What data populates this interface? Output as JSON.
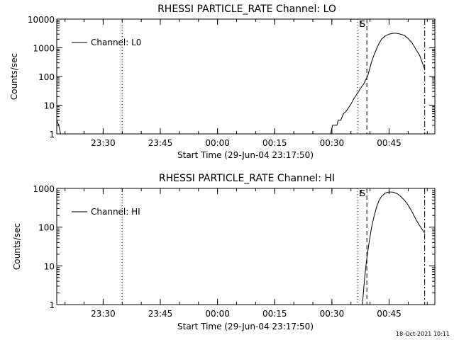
{
  "footer_timestamp": "18-Oct-2021 10:11",
  "colors": {
    "background": "#ffffff",
    "foreground": "#000000"
  },
  "chart_data": [
    {
      "type": "line",
      "title": "RHESSI PARTICLE_RATE Channel: LO",
      "xlabel": "Start Time (29-Jun-04 23:17:50)",
      "ylabel": "Counts/sec",
      "y_scale": "log",
      "ylim": [
        1,
        10000
      ],
      "xlim": [
        "23:17:50",
        "00:57:00"
      ],
      "x_ticks": [
        "23:30",
        "23:45",
        "00:00",
        "00:15",
        "00:30",
        "00:45"
      ],
      "y_ticks": [
        "1",
        "10",
        "100",
        "1000",
        "10000"
      ],
      "grid": false,
      "legend": {
        "position": "top-left",
        "entries": [
          "Channel: L0"
        ]
      },
      "markers": [
        {
          "time": "23:35:00",
          "style": "dotted",
          "label": ""
        },
        {
          "time": "00:36:45",
          "style": "dotted",
          "label": "E"
        },
        {
          "time": "00:39:10",
          "style": "dashed",
          "label": "S"
        },
        {
          "time": "00:54:20",
          "style": "dash-dot",
          "label": ""
        }
      ],
      "series": [
        {
          "name": "Channel: L0",
          "segments": [
            {
              "x": [
                "23:17:50",
                "23:18:20",
                "23:18:50"
              ],
              "y": [
                3,
                2,
                1
              ]
            },
            {
              "x": [
                "00:29:40",
                "00:30:10",
                "00:30:40",
                "00:31:20",
                "00:31:40",
                "00:32:20",
                "00:33:00",
                "00:33:40",
                "00:34:20",
                "00:35:00",
                "00:35:40",
                "00:36:20",
                "00:37:00",
                "00:37:40",
                "00:38:20",
                "00:38:50",
                "00:39:20",
                "00:39:50",
                "00:40:20",
                "00:41:00",
                "00:41:40",
                "00:42:20",
                "00:43:00",
                "00:44:00",
                "00:45:00",
                "00:46:00",
                "00:47:00",
                "00:48:00",
                "00:49:00",
                "00:50:00",
                "00:51:00",
                "00:52:00",
                "00:53:00",
                "00:54:20"
              ],
              "y": [
                1,
                2,
                2,
                2,
                3,
                3,
                5,
                6,
                8,
                11,
                16,
                22,
                30,
                42,
                55,
                75,
                100,
                170,
                300,
                550,
                900,
                1400,
                2000,
                2600,
                3000,
                3200,
                3200,
                3000,
                2700,
                2100,
                1500,
                900,
                550,
                180
              ]
            }
          ]
        }
      ]
    },
    {
      "type": "line",
      "title": "RHESSI PARTICLE_RATE Channel: HI",
      "xlabel": "Start Time (29-Jun-04 23:17:50)",
      "ylabel": "Counts/sec",
      "y_scale": "log",
      "ylim": [
        1,
        1000
      ],
      "xlim": [
        "23:17:50",
        "00:57:00"
      ],
      "x_ticks": [
        "23:30",
        "23:45",
        "00:00",
        "00:15",
        "00:30",
        "00:45"
      ],
      "y_ticks": [
        "1",
        "10",
        "100",
        "1000"
      ],
      "grid": false,
      "legend": {
        "position": "top-left",
        "entries": [
          "Channel: HI"
        ]
      },
      "markers": [
        {
          "time": "23:35:00",
          "style": "dotted",
          "label": ""
        },
        {
          "time": "00:36:45",
          "style": "dotted",
          "label": "E"
        },
        {
          "time": "00:39:10",
          "style": "dashed",
          "label": "S"
        },
        {
          "time": "00:54:20",
          "style": "dash-dot",
          "label": ""
        }
      ],
      "series": [
        {
          "name": "Channel: HI",
          "segments": [
            {
              "x": [
                "00:38:00",
                "00:38:30",
                "00:39:00",
                "00:39:40",
                "00:40:20",
                "00:41:00",
                "00:41:40",
                "00:42:20",
                "00:43:00",
                "00:44:00",
                "00:45:00",
                "00:46:00",
                "00:47:00",
                "00:48:00",
                "00:49:00",
                "00:50:00",
                "00:51:00",
                "00:52:00",
                "00:53:00",
                "00:54:20"
              ],
              "y": [
                1,
                4,
                12,
                35,
                90,
                180,
                320,
                480,
                620,
                760,
                810,
                800,
                740,
                630,
                500,
                370,
                250,
                160,
                110,
                70
              ]
            }
          ]
        }
      ]
    }
  ]
}
